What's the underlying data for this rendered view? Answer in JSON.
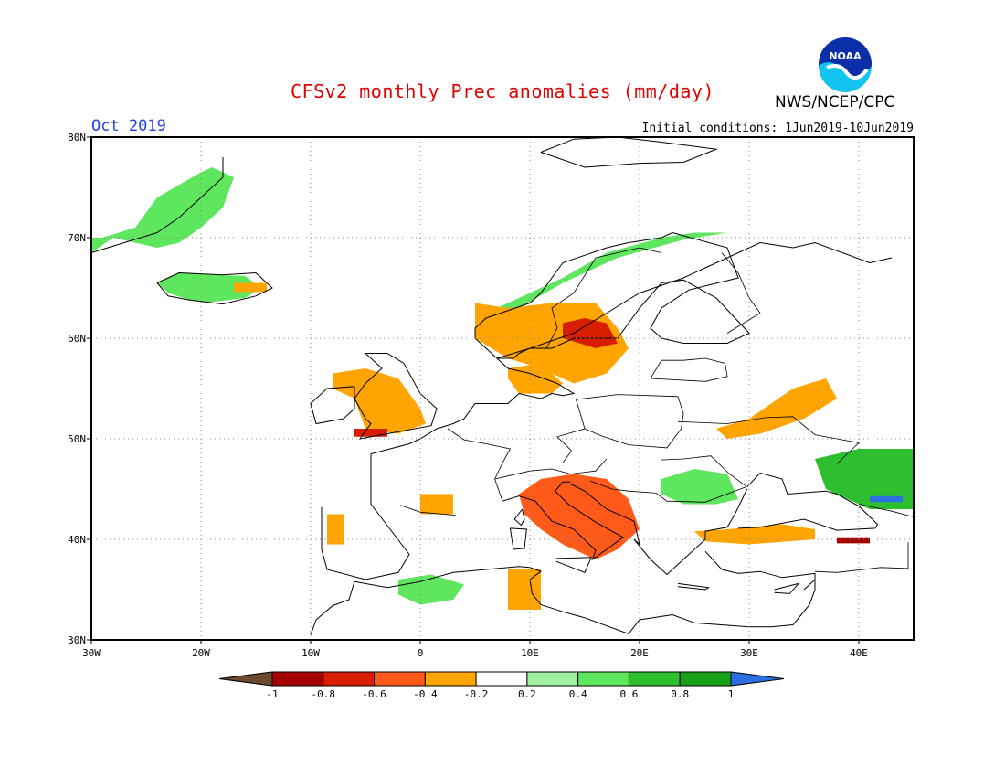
{
  "header": {
    "title": "CFSv2 monthly Prec anomalies (mm/day)",
    "credit": "NWS/NCEP/CPC",
    "month": "Oct 2019",
    "initial_conditions": "Initial conditions: 1Jun2019-10Jun2019",
    "logo_text": "NOAA"
  },
  "map": {
    "lon_range": [
      -30,
      45
    ],
    "lat_range": [
      30,
      80
    ],
    "lon_ticks": [
      "30W",
      "20W",
      "10W",
      "0",
      "10E",
      "20E",
      "30E",
      "40E"
    ],
    "lat_ticks": [
      "30N",
      "40N",
      "50N",
      "60N",
      "70N",
      "80N"
    ],
    "grid": "dotted, every 10 degrees"
  },
  "legend": {
    "ticks": [
      "-1",
      "-0.8",
      "-0.6",
      "-0.4",
      "-0.2",
      "0.2",
      "0.4",
      "0.6",
      "0.8",
      "1"
    ],
    "colors": {
      "below_-1": "#6b4a2f",
      "-1_-0.8": "#a50000",
      "-0.8_-0.6": "#d81e00",
      "-0.6_-0.4": "#ff5a1a",
      "-0.4_-0.2": "#ffa400",
      "-0.2_0.2": "#ffffff",
      "0.2_0.4": "#a0f0a0",
      "0.4_0.6": "#5ee65e",
      "0.6_0.8": "#2ebf2e",
      "0.8_1": "#18a018",
      "above_1": "#2b6fe0"
    }
  },
  "anomaly_regions": [
    {
      "name": "Greenland",
      "level": 0.4,
      "lons": [
        -29,
        -26,
        -24,
        -20,
        -19,
        -17,
        -18,
        -20,
        -22,
        -24,
        -26,
        -28,
        -30,
        -30
      ],
      "lats": [
        70,
        71,
        74,
        76.5,
        77,
        76,
        73,
        71,
        69.5,
        69,
        69.5,
        70,
        68.5,
        70
      ]
    },
    {
      "name": "Iceland",
      "level": 0.5,
      "lons": [
        -24,
        -22,
        -19,
        -16,
        -14.5,
        -16,
        -19,
        -21,
        -23
      ],
      "lats": [
        65.5,
        66.5,
        66.3,
        66.2,
        65,
        64,
        63.6,
        63.8,
        64.5
      ]
    },
    {
      "name": "Iceland-east-dry",
      "level": -0.3,
      "lons": [
        -17,
        -14,
        -14,
        -17
      ],
      "lats": [
        65.5,
        65.5,
        64.6,
        64.6
      ]
    },
    {
      "name": "Norway-coast-wet",
      "level": 0.4,
      "lons": [
        5,
        8,
        13,
        17,
        22,
        25,
        28,
        24,
        18,
        13,
        9,
        6
      ],
      "lats": [
        62,
        63.5,
        66,
        68.5,
        70,
        70.5,
        70.5,
        69.8,
        68,
        65.5,
        63,
        61.5
      ]
    },
    {
      "name": "Scandinavia-dry",
      "level": -0.3,
      "lons": [
        5,
        8,
        12,
        16,
        18,
        19,
        17,
        14,
        11,
        8,
        5
      ],
      "lats": [
        63.5,
        63,
        63.5,
        63.5,
        61,
        59,
        56.5,
        55.5,
        57,
        58,
        60
      ]
    },
    {
      "name": "Sweden-core-dry",
      "level": -0.6,
      "lons": [
        13,
        15,
        17,
        18,
        16,
        13
      ],
      "lats": [
        61.5,
        62,
        61.5,
        59.5,
        59,
        60
      ]
    },
    {
      "name": "Denmark-dry",
      "level": -0.3,
      "lons": [
        8,
        11,
        13,
        12,
        9,
        8
      ],
      "lats": [
        57,
        57.5,
        55.5,
        54.5,
        54.5,
        56
      ]
    },
    {
      "name": "Ireland-UK-dry",
      "level": -0.3,
      "lons": [
        -8,
        -5,
        -2,
        0,
        0.5,
        -2,
        -5,
        -6,
        -8
      ],
      "lats": [
        56.5,
        57,
        56,
        53,
        51.5,
        50.5,
        51,
        54,
        55
      ]
    },
    {
      "name": "Cornwall-dry",
      "level": -0.6,
      "lons": [
        -6,
        -3,
        -3,
        -6
      ],
      "lats": [
        51,
        51,
        50.2,
        50.2
      ]
    },
    {
      "name": "Italy-dry",
      "level": -0.9,
      "lons": [
        10,
        13,
        16,
        18,
        19,
        17,
        15,
        13,
        11,
        10
      ],
      "lats": [
        45,
        46,
        45,
        43,
        41.5,
        39.5,
        38.5,
        41,
        42.5,
        44
      ]
    },
    {
      "name": "Italy-rim-dry",
      "level": -0.5,
      "lons": [
        9,
        11,
        14,
        17,
        19,
        20,
        18,
        16,
        13,
        11,
        9.5
      ],
      "lats": [
        44.5,
        46,
        46.5,
        46,
        44,
        41,
        39,
        38,
        39.5,
        41,
        42.5
      ]
    },
    {
      "name": "Balkans-wet",
      "level": 0.5,
      "lons": [
        22,
        25,
        28,
        29,
        27,
        24,
        22
      ],
      "lats": [
        46,
        47,
        46.5,
        44,
        43.5,
        43.5,
        44.5
      ]
    },
    {
      "name": "Ukraine-dry",
      "level": -0.3,
      "lons": [
        27,
        30,
        34,
        37,
        38,
        35,
        31,
        28
      ],
      "lats": [
        51,
        52,
        55,
        56,
        54,
        52,
        50.5,
        50
      ]
    },
    {
      "name": "Russia-southeast-wet",
      "level": 0.6,
      "lons": [
        36,
        40,
        45,
        45,
        41,
        37
      ],
      "lats": [
        48,
        49,
        49,
        43,
        43,
        45
      ]
    },
    {
      "name": "Caspian-blue",
      "level": 1.1,
      "lons": [
        41,
        44,
        44,
        41
      ],
      "lats": [
        44.3,
        44.3,
        43.7,
        43.7
      ]
    },
    {
      "name": "Turkey-dry",
      "level": -0.3,
      "lons": [
        25,
        28,
        33,
        36,
        36,
        30,
        26
      ],
      "lats": [
        40.8,
        41,
        41.5,
        41,
        40,
        39.5,
        39.8
      ]
    },
    {
      "name": "Turkey-east-dry",
      "level": -0.8,
      "lons": [
        38,
        41,
        41,
        38
      ],
      "lats": [
        40.2,
        40.2,
        39.6,
        39.6
      ]
    },
    {
      "name": "Iberia-dry",
      "level": -0.3,
      "lons": [
        -8.5,
        -7,
        -7,
        -8.5
      ],
      "lats": [
        42.5,
        42.5,
        39.5,
        39.5
      ]
    },
    {
      "name": "France-south-dry",
      "level": -0.3,
      "lons": [
        0,
        3,
        3,
        0
      ],
      "lats": [
        44.5,
        44.5,
        42.5,
        42.5
      ]
    },
    {
      "name": "Algeria-wet",
      "level": 0.5,
      "lons": [
        -2,
        1,
        4,
        3,
        0,
        -2
      ],
      "lats": [
        36,
        36.5,
        35.5,
        34,
        33.5,
        34.5
      ]
    },
    {
      "name": "Tunisia-dry",
      "level": -0.3,
      "lons": [
        8,
        11,
        11,
        8
      ],
      "lats": [
        37,
        37,
        33,
        33
      ]
    }
  ],
  "coastline_polylines": [
    {
      "name": "Europe-north",
      "lons": [
        -9,
        -9,
        -8.5,
        -5,
        -2,
        -1,
        -4.5,
        -4.5,
        -1,
        0,
        1.5,
        3,
        4,
        5,
        8,
        9,
        11,
        12,
        13,
        14,
        12.5,
        10,
        8,
        7,
        8.5,
        9,
        10,
        12,
        14,
        18,
        20,
        22,
        24,
        27,
        30,
        28,
        24,
        22,
        21,
        22,
        24.5,
        29,
        28,
        23,
        22,
        19,
        17,
        13,
        11,
        10,
        6,
        5,
        5,
        7,
        10,
        14,
        17,
        20,
        24,
        28,
        31,
        34,
        36,
        41,
        43
      ],
      "lats": [
        43.2,
        39,
        37,
        36,
        36.7,
        38.5,
        43.5,
        48.5,
        49.5,
        50,
        51,
        51.5,
        52,
        53.5,
        53.5,
        54.5,
        54,
        54.5,
        54.3,
        54.5,
        55.5,
        56.5,
        57,
        58,
        58,
        58.5,
        59,
        59,
        60,
        60,
        63,
        65.5,
        65.8,
        64,
        60.5,
        59.5,
        59.5,
        60,
        61,
        63,
        64.8,
        66,
        69,
        70.5,
        70,
        69.5,
        69,
        67.5,
        64.5,
        63.5,
        62,
        61,
        60,
        58,
        59,
        60.5,
        62.5,
        64.5,
        66,
        68,
        69.5,
        69,
        69.5,
        67.5,
        68
      ]
    },
    {
      "name": "Great-Britain",
      "lons": [
        -5,
        -3,
        -1.5,
        0,
        1.5,
        1,
        -3,
        -5.5,
        -4.5,
        -5,
        -6,
        -5,
        -3.5,
        -5
      ],
      "lats": [
        58.5,
        58.5,
        57.5,
        54.5,
        53,
        51.3,
        50.5,
        50,
        51.5,
        52,
        54,
        55.5,
        57,
        58.5
      ]
    },
    {
      "name": "Ireland",
      "lons": [
        -6,
        -8.5,
        -10,
        -9.5,
        -7,
        -6,
        -6
      ],
      "lats": [
        55.2,
        55,
        53.5,
        51.5,
        52,
        53,
        55.2
      ]
    },
    {
      "name": "Iceland",
      "lons": [
        -24,
        -22,
        -18,
        -15,
        -13.5,
        -15,
        -18,
        -21,
        -23,
        -24
      ],
      "lats": [
        65.5,
        66.5,
        66.3,
        66.5,
        65,
        64.2,
        63.4,
        63.8,
        64.2,
        65.5
      ]
    },
    {
      "name": "Greenland-east",
      "lons": [
        -30,
        -27,
        -24,
        -22,
        -20,
        -18,
        -18
      ],
      "lats": [
        68.5,
        69.5,
        70.5,
        72,
        74,
        76,
        78
      ]
    },
    {
      "name": "Svalbard",
      "lons": [
        11,
        14,
        18,
        22,
        27,
        24,
        20,
        15,
        11
      ],
      "lats": [
        78.5,
        79.8,
        80,
        79.5,
        78.8,
        77.5,
        77.4,
        77,
        78.5
      ]
    },
    {
      "name": "Italy",
      "lons": [
        7.5,
        9,
        10.5,
        12,
        14,
        16,
        15.7,
        17,
        18.5,
        16,
        13.5,
        12.3,
        13,
        13.7
      ],
      "lats": [
        43.8,
        44.3,
        43.8,
        41.8,
        41,
        38.9,
        38,
        39,
        40.2,
        41.7,
        43.5,
        44.8,
        45.7,
        45.7
      ]
    },
    {
      "name": "Balkans",
      "lons": [
        13.7,
        15,
        17,
        19.5,
        20,
        19.5,
        21,
        22.5,
        24,
        26,
        26,
        28,
        28.7,
        29.8
      ],
      "lats": [
        45.5,
        44.8,
        43,
        41.8,
        39.5,
        40,
        38,
        36.5,
        38,
        40,
        40.8,
        41.2,
        42.5,
        45
      ]
    },
    {
      "name": "Black-Sea",
      "lons": [
        29.8,
        31,
        33,
        33.5,
        37,
        38,
        40,
        41.7,
        41.5,
        38,
        35,
        31,
        29
      ],
      "lats": [
        45.2,
        46.6,
        46,
        44.5,
        44.8,
        44.5,
        43.3,
        41.5,
        41.1,
        40.9,
        42,
        41.2,
        41.1
      ]
    },
    {
      "name": "Turkey-south",
      "lons": [
        26,
        27.5,
        29,
        31,
        33,
        36,
        36,
        35
      ],
      "lats": [
        38.8,
        37,
        36.6,
        36.8,
        36.2,
        36.6,
        36,
        35
      ]
    },
    {
      "name": "North-Africa",
      "lons": [
        -6,
        -3,
        0,
        3,
        6,
        9,
        10,
        11,
        10,
        10.2,
        11,
        13,
        15,
        19,
        20,
        23,
        25,
        30,
        32,
        34,
        35.5,
        36,
        36
      ],
      "lats": [
        35.8,
        35.2,
        35.8,
        36.7,
        37,
        37.3,
        37.2,
        36.8,
        36,
        34.6,
        33.5,
        32.8,
        32.2,
        30.6,
        32,
        32.5,
        31.7,
        31.3,
        31.3,
        31.5,
        33.5,
        35,
        36
      ]
    },
    {
      "name": "Morocco-atlantic",
      "lons": [
        -6,
        -6.5,
        -8,
        -9.5,
        -10
      ],
      "lats": [
        35.8,
        34,
        33.4,
        32,
        30.5
      ]
    },
    {
      "name": "Sardinia",
      "lons": [
        8.2,
        9.7,
        9.5,
        8.5,
        8.2
      ],
      "lats": [
        41.1,
        41,
        39.1,
        39,
        41.1
      ]
    },
    {
      "name": "Corsica",
      "lons": [
        9.3,
        9.5,
        9.2,
        8.6,
        9.3
      ],
      "lats": [
        43,
        42,
        41.4,
        42,
        43
      ]
    },
    {
      "name": "Sicily",
      "lons": [
        12.4,
        15.6,
        15,
        12.4
      ],
      "lats": [
        38.1,
        38.2,
        36.7,
        37.8
      ]
    },
    {
      "name": "Crete",
      "lons": [
        23.5,
        26.3,
        26,
        23.5
      ],
      "lats": [
        35.6,
        35.2,
        35,
        35.3
      ]
    },
    {
      "name": "Cyprus",
      "lons": [
        32.3,
        34.5,
        33.7,
        32.3
      ],
      "lats": [
        35,
        35.6,
        34.6,
        34.7
      ]
    },
    {
      "name": "Caspian-west",
      "lons": [
        47,
        47.5,
        48.5,
        49
      ],
      "lats": [
        45,
        43,
        41.5,
        40
      ]
    }
  ],
  "border_polylines": [
    {
      "name": "France-Spain",
      "lons": [
        -1.8,
        0,
        3.2
      ],
      "lats": [
        43.4,
        42.7,
        42.4
      ]
    },
    {
      "name": "France-east",
      "lons": [
        2.5,
        4,
        6,
        8.2,
        7.5,
        6.8,
        7.5
      ],
      "lats": [
        51,
        49.9,
        49.5,
        49,
        47.6,
        46,
        43.8
      ]
    },
    {
      "name": "Germany-east",
      "lons": [
        14.2,
        14.6,
        15,
        12.5,
        13.8,
        13,
        10,
        9.5
      ],
      "lats": [
        53.9,
        52.5,
        51,
        50.2,
        48.8,
        47.6,
        47.6,
        47.6
      ]
    },
    {
      "name": "Alps",
      "lons": [
        6.8,
        8,
        10,
        12,
        13.7,
        16,
        17
      ],
      "lats": [
        46,
        46.3,
        46.8,
        47,
        46.5,
        46.8,
        48
      ]
    },
    {
      "name": "Poland-east",
      "lons": [
        14.2,
        18,
        23.5,
        24,
        23.8,
        22.5,
        19,
        16.5,
        15
      ],
      "lats": [
        53.9,
        54.4,
        54.2,
        52.5,
        51,
        49.1,
        49.4,
        50.3,
        51
      ]
    },
    {
      "name": "Baltic-states",
      "lons": [
        21,
        26,
        28,
        27.8,
        26,
        24,
        22,
        21
      ],
      "lats": [
        56,
        55.7,
        56.2,
        57.5,
        58,
        57.8,
        57.8,
        56
      ]
    },
    {
      "name": "Belarus-Ukraine",
      "lons": [
        23.5,
        28,
        31.5,
        34,
        36,
        40,
        38
      ],
      "lats": [
        51.7,
        51.5,
        52.1,
        52.2,
        50.4,
        49.6,
        47.5
      ]
    },
    {
      "name": "Russia-Finland",
      "lons": [
        28,
        31,
        30,
        29,
        27.5
      ],
      "lats": [
        60.5,
        62.5,
        64,
        66.5,
        68.5
      ]
    },
    {
      "name": "Sweden-Norway",
      "lons": [
        11.5,
        12.5,
        12,
        14,
        16,
        20,
        22
      ],
      "lats": [
        59,
        61,
        63,
        64.5,
        68,
        69,
        68.5
      ]
    },
    {
      "name": "Balkan-interior",
      "lons": [
        15.5,
        17.5,
        19,
        21.5,
        22.5,
        26,
        29.7
      ],
      "lats": [
        45.8,
        45,
        44.8,
        44.6,
        43.8,
        43.7,
        45.2
      ]
    },
    {
      "name": "Romania-Ukraine",
      "lons": [
        22,
        24,
        26.5,
        28.2,
        29.7
      ],
      "lats": [
        47.9,
        48,
        48.3,
        46.5,
        45.3
      ]
    },
    {
      "name": "Turkey-east",
      "lons": [
        36,
        38,
        42,
        44.5,
        44.5
      ],
      "lats": [
        36.8,
        36.7,
        37.2,
        37.1,
        39.7
      ]
    },
    {
      "name": "Caucasus",
      "lons": [
        40,
        43,
        46.5,
        48
      ],
      "lats": [
        43.5,
        42.8,
        41.8,
        41.8
      ]
    }
  ]
}
